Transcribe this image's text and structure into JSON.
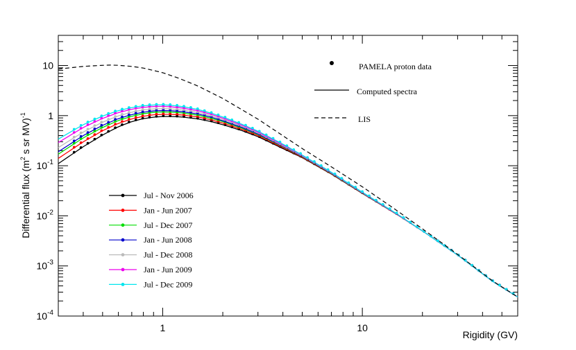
{
  "chart_data": {
    "type": "line",
    "title": "",
    "xlabel": "Rigidity (GV)",
    "ylabel_main": "Differential flux (m",
    "ylabel_sup1": "2",
    "ylabel_mid": " s sr MV)",
    "ylabel_sup2": "-1",
    "x_scale": "log",
    "y_scale": "log",
    "xlim": [
      0.3,
      60
    ],
    "ylim": [
      0.0001,
      40
    ],
    "x_tick_labels": [
      {
        "value": 1,
        "label": "1"
      },
      {
        "value": 10,
        "label": "10"
      }
    ],
    "y_tick_labels": [
      {
        "value": 10,
        "base": "10",
        "exp": ""
      },
      {
        "value": 1,
        "base": "1",
        "exp": ""
      },
      {
        "value": 0.1,
        "base": "10",
        "exp": "-1"
      },
      {
        "value": 0.01,
        "base": "10",
        "exp": "-2"
      },
      {
        "value": 0.001,
        "base": "10",
        "exp": "-3"
      },
      {
        "value": 0.0001,
        "base": "10",
        "exp": "-4"
      }
    ],
    "lis": {
      "name": "LIS",
      "x": [
        0.3,
        0.4,
        0.5,
        0.55,
        0.6,
        0.7,
        0.8,
        1.0,
        1.2,
        1.5,
        2,
        3,
        5,
        7,
        10,
        15,
        20,
        30,
        45,
        60
      ],
      "y": [
        8.5,
        9.6,
        10.1,
        10.2,
        10.1,
        9.6,
        8.9,
        7.2,
        5.6,
        3.9,
        2.2,
        0.85,
        0.22,
        0.095,
        0.038,
        0.0125,
        0.0055,
        0.0017,
        0.0005,
        0.00024
      ]
    },
    "computed_legend": "Computed spectra",
    "data_legend": "PAMELA proton data",
    "series": [
      {
        "name": "Jul - Nov 2006",
        "color": "#000000",
        "x": [
          0.3,
          0.4,
          0.5,
          0.6,
          0.7,
          0.8,
          0.9,
          1.0,
          1.1,
          1.25,
          1.5,
          1.75,
          2.0,
          2.5,
          3,
          4,
          5,
          7,
          10,
          15,
          20,
          30,
          45,
          60
        ],
        "y": [
          0.11,
          0.24,
          0.41,
          0.6,
          0.76,
          0.87,
          0.93,
          0.96,
          0.96,
          0.94,
          0.86,
          0.76,
          0.66,
          0.5,
          0.38,
          0.22,
          0.145,
          0.068,
          0.028,
          0.0105,
          0.005,
          0.00165,
          0.00049,
          0.00024
        ]
      },
      {
        "name": "Jan - Jun 2007",
        "color": "#ff0000",
        "x": [
          0.3,
          0.4,
          0.5,
          0.6,
          0.7,
          0.8,
          0.9,
          1.0,
          1.1,
          1.25,
          1.5,
          1.75,
          2.0,
          2.5,
          3,
          4,
          5,
          7,
          10,
          15,
          20,
          30,
          45,
          60
        ],
        "y": [
          0.14,
          0.3,
          0.5,
          0.7,
          0.86,
          0.97,
          1.04,
          1.06,
          1.06,
          1.03,
          0.94,
          0.82,
          0.71,
          0.53,
          0.4,
          0.23,
          0.148,
          0.069,
          0.0283,
          0.0105,
          0.005,
          0.00165,
          0.00049,
          0.00024
        ]
      },
      {
        "name": "Jul - Dec 2007",
        "color": "#00dd00",
        "x": [
          0.3,
          0.4,
          0.5,
          0.6,
          0.7,
          0.8,
          0.9,
          1.0,
          1.1,
          1.25,
          1.5,
          1.75,
          2.0,
          2.5,
          3,
          4,
          5,
          7,
          10,
          15,
          20,
          30,
          45,
          60
        ],
        "y": [
          0.17,
          0.36,
          0.58,
          0.8,
          0.97,
          1.09,
          1.16,
          1.18,
          1.17,
          1.13,
          1.02,
          0.88,
          0.76,
          0.56,
          0.42,
          0.24,
          0.152,
          0.07,
          0.0286,
          0.0106,
          0.005,
          0.00165,
          0.00049,
          0.00024
        ]
      },
      {
        "name": "Jan - Jun 2008",
        "color": "#0000cc",
        "x": [
          0.3,
          0.4,
          0.5,
          0.6,
          0.7,
          0.8,
          0.9,
          1.0,
          1.1,
          1.25,
          1.5,
          1.75,
          2.0,
          2.5,
          3,
          4,
          5,
          7,
          10,
          15,
          20,
          30,
          45,
          60
        ],
        "y": [
          0.19,
          0.4,
          0.64,
          0.87,
          1.05,
          1.17,
          1.24,
          1.26,
          1.25,
          1.2,
          1.08,
          0.93,
          0.79,
          0.58,
          0.43,
          0.245,
          0.154,
          0.071,
          0.0288,
          0.0106,
          0.005,
          0.00165,
          0.00049,
          0.00024
        ]
      },
      {
        "name": "Jul - Dec 2008",
        "color": "#bbbbbb",
        "x": [
          0.3,
          0.4,
          0.5,
          0.6,
          0.7,
          0.8,
          0.9,
          1.0,
          1.1,
          1.25,
          1.5,
          1.75,
          2.0,
          2.5,
          3,
          4,
          5,
          7,
          10,
          15,
          20,
          30,
          45,
          60
        ],
        "y": [
          0.23,
          0.47,
          0.74,
          0.99,
          1.17,
          1.3,
          1.36,
          1.38,
          1.36,
          1.3,
          1.16,
          0.99,
          0.84,
          0.61,
          0.45,
          0.25,
          0.157,
          0.072,
          0.029,
          0.0107,
          0.005,
          0.00165,
          0.00049,
          0.00024
        ]
      },
      {
        "name": "Jan - Jun 2009",
        "color": "#ee00ee",
        "x": [
          0.3,
          0.4,
          0.5,
          0.6,
          0.7,
          0.8,
          0.9,
          1.0,
          1.1,
          1.25,
          1.5,
          1.75,
          2.0,
          2.5,
          3,
          4,
          5,
          7,
          10,
          15,
          20,
          30,
          45,
          60
        ],
        "y": [
          0.29,
          0.58,
          0.88,
          1.15,
          1.34,
          1.46,
          1.52,
          1.53,
          1.5,
          1.42,
          1.25,
          1.06,
          0.89,
          0.64,
          0.47,
          0.26,
          0.16,
          0.073,
          0.0293,
          0.0107,
          0.005,
          0.00165,
          0.00049,
          0.00024
        ]
      },
      {
        "name": "Jul - Dec 2009",
        "color": "#00e5ee",
        "x": [
          0.3,
          0.4,
          0.5,
          0.6,
          0.7,
          0.8,
          0.9,
          1.0,
          1.1,
          1.25,
          1.5,
          1.75,
          2.0,
          2.5,
          3,
          4,
          5,
          7,
          10,
          15,
          20,
          30,
          45,
          60
        ],
        "y": [
          0.34,
          0.66,
          0.98,
          1.26,
          1.45,
          1.57,
          1.63,
          1.64,
          1.61,
          1.52,
          1.33,
          1.12,
          0.94,
          0.67,
          0.49,
          0.27,
          0.163,
          0.074,
          0.0296,
          0.0108,
          0.005,
          0.00165,
          0.00049,
          0.00024
        ]
      }
    ]
  }
}
